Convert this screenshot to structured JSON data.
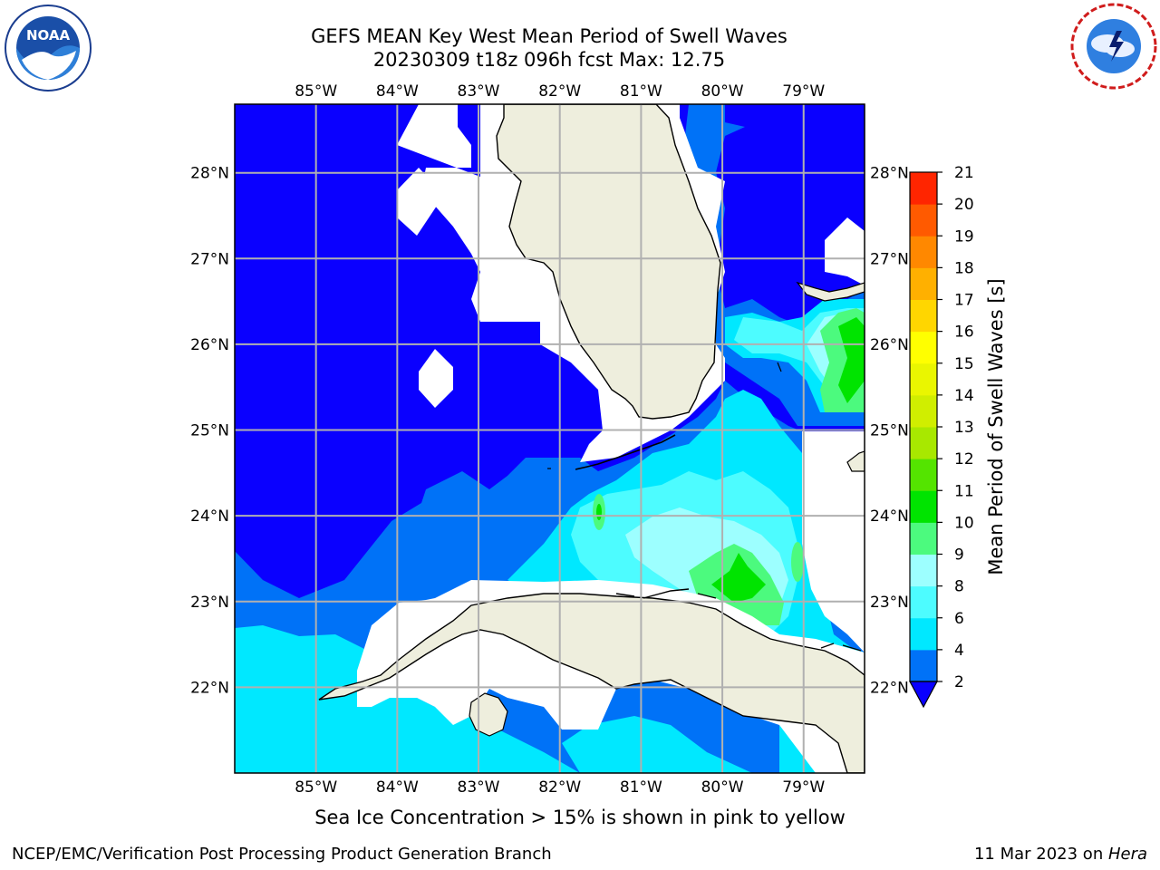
{
  "title": {
    "line1": "GEFS MEAN Key West Mean Period of Swell Waves",
    "line2": "20230309 t18z 096h fcst   Max: 12.75"
  },
  "map": {
    "lon_labels": [
      "85°W",
      "84°W",
      "83°W",
      "82°W",
      "81°W",
      "80°W",
      "79°W"
    ],
    "lat_labels": [
      "28°N",
      "27°N",
      "26°N",
      "25°N",
      "24°N",
      "23°N",
      "22°N"
    ],
    "lon_range": [
      -86.0,
      -78.25
    ],
    "lat_range": [
      21.0,
      28.8
    ],
    "field_max": 12.75
  },
  "colorbar": {
    "label": "Mean Period of Swell Waves [s]",
    "ticks": [
      "2",
      "4",
      "6",
      "8",
      "9",
      "10",
      "11",
      "12",
      "13",
      "14",
      "15",
      "16",
      "17",
      "18",
      "19",
      "20",
      "21"
    ],
    "levels": [
      2,
      4,
      6,
      8,
      9,
      10,
      11,
      12,
      13,
      14,
      15,
      16,
      17,
      18,
      19,
      20,
      21
    ],
    "colors": [
      "#0072f7",
      "#00e8ff",
      "#4dfcff",
      "#9dffff",
      "#4cfa7e",
      "#00e400",
      "#54e400",
      "#a8e800",
      "#d0ee00",
      "#eaf600",
      "#ffff00",
      "#ffd600",
      "#ffb000",
      "#ff8800",
      "#ff5a00",
      "#ff2500",
      "#ff0000"
    ],
    "under_color": "#0a00ff",
    "extend": "min"
  },
  "colors": {
    "deep_blue": "#0a00ff",
    "mid_blue": "#0072f7",
    "cyan": "#00e8ff",
    "light_cyan": "#4dfcff",
    "pale_cyan": "#9dffff",
    "light_green": "#4cfa7e",
    "green": "#00e400",
    "land": "#eeeedd",
    "grid": "#b0b0b0"
  },
  "note": "Sea Ice Concentration > 15% is shown in pink to yellow",
  "footer": {
    "left": "NCEP/EMC/Verification Post Processing Product Generation Branch",
    "date": "11 Mar 2023 on ",
    "machine": "Hera"
  },
  "logos": {
    "noaa_text": "NOAA",
    "noaa_icon": "noaa-logo",
    "nws_icon": "nws-logo"
  }
}
